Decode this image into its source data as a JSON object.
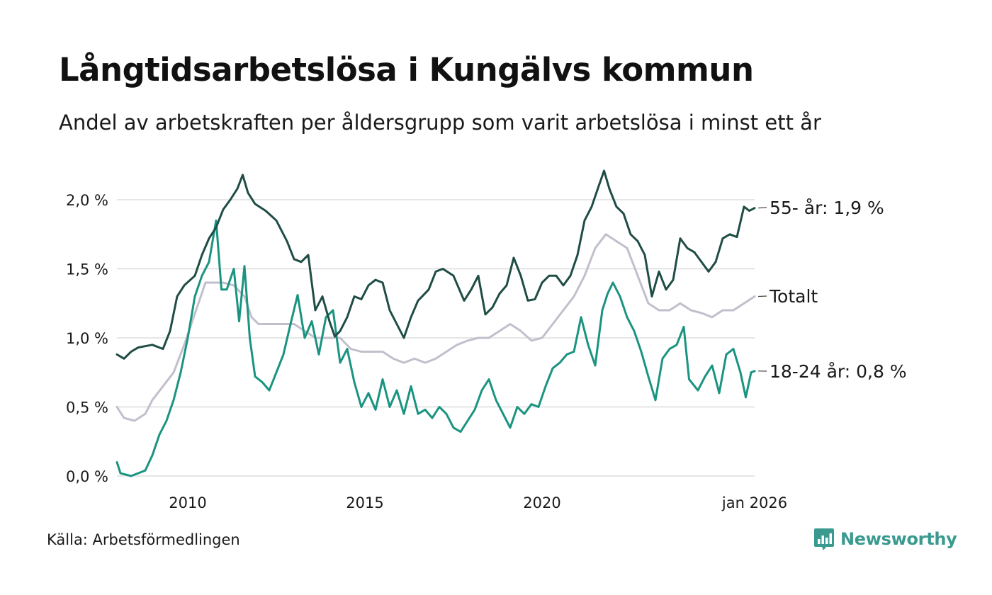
{
  "header": {
    "title": "Långtidsarbetslösa i Kungälvs kommun",
    "subtitle": "Andel av arbetskraften per åldersgrupp som varit arbetslösa i minst ett år"
  },
  "footer": {
    "source": "Källa: Arbetsförmedlingen",
    "brand": "Newsworthy"
  },
  "colors": {
    "series_55": "#1f4d45",
    "series_total": "#c2bfcc",
    "series_18_24": "#1a9480",
    "grid": "#dddddd",
    "brand": "#3a9a8f"
  },
  "chart_data": {
    "type": "line",
    "title": "Långtidsarbetslösa i Kungälvs kommun",
    "subtitle": "Andel av arbetskraften per åldersgrupp som varit arbetslösa i minst ett år",
    "xlabel": "",
    "ylabel": "",
    "xlim": [
      2008.0,
      2026.0
    ],
    "ylim": [
      0,
      2.2
    ],
    "y_ticks": [
      0,
      0.5,
      1.0,
      1.5,
      2.0
    ],
    "y_tick_labels": [
      "0,0 %",
      "0,5 %",
      "1,0 %",
      "1,5 %",
      "2,0 %"
    ],
    "x_ticks": [
      2010,
      2015,
      2020,
      2026.0
    ],
    "x_tick_labels": [
      "2010",
      "2015",
      "2020",
      "jan 2026"
    ],
    "grid": true,
    "series": [
      {
        "name": "55- år",
        "label": "55- år: 1,9 %",
        "color_key": "series_55",
        "points": [
          [
            2008.0,
            0.88
          ],
          [
            2008.2,
            0.85
          ],
          [
            2008.4,
            0.9
          ],
          [
            2008.6,
            0.93
          ],
          [
            2008.8,
            0.94
          ],
          [
            2009.0,
            0.95
          ],
          [
            2009.3,
            0.92
          ],
          [
            2009.5,
            1.05
          ],
          [
            2009.7,
            1.3
          ],
          [
            2009.9,
            1.38
          ],
          [
            2010.2,
            1.45
          ],
          [
            2010.4,
            1.6
          ],
          [
            2010.6,
            1.72
          ],
          [
            2010.8,
            1.8
          ],
          [
            2011.0,
            1.93
          ],
          [
            2011.2,
            2.0
          ],
          [
            2011.4,
            2.08
          ],
          [
            2011.55,
            2.18
          ],
          [
            2011.7,
            2.05
          ],
          [
            2011.9,
            1.97
          ],
          [
            2012.2,
            1.92
          ],
          [
            2012.5,
            1.85
          ],
          [
            2012.8,
            1.7
          ],
          [
            2013.0,
            1.57
          ],
          [
            2013.2,
            1.55
          ],
          [
            2013.4,
            1.6
          ],
          [
            2013.6,
            1.2
          ],
          [
            2013.8,
            1.3
          ],
          [
            2014.0,
            1.12
          ],
          [
            2014.15,
            1.01
          ],
          [
            2014.3,
            1.05
          ],
          [
            2014.5,
            1.15
          ],
          [
            2014.7,
            1.3
          ],
          [
            2014.9,
            1.28
          ],
          [
            2015.1,
            1.38
          ],
          [
            2015.3,
            1.42
          ],
          [
            2015.5,
            1.4
          ],
          [
            2015.7,
            1.2
          ],
          [
            2015.9,
            1.1
          ],
          [
            2016.1,
            1.0
          ],
          [
            2016.3,
            1.15
          ],
          [
            2016.5,
            1.27
          ],
          [
            2016.8,
            1.35
          ],
          [
            2017.0,
            1.48
          ],
          [
            2017.2,
            1.5
          ],
          [
            2017.5,
            1.45
          ],
          [
            2017.8,
            1.27
          ],
          [
            2018.0,
            1.35
          ],
          [
            2018.2,
            1.45
          ],
          [
            2018.4,
            1.17
          ],
          [
            2018.6,
            1.22
          ],
          [
            2018.8,
            1.32
          ],
          [
            2019.0,
            1.38
          ],
          [
            2019.2,
            1.58
          ],
          [
            2019.4,
            1.45
          ],
          [
            2019.6,
            1.27
          ],
          [
            2019.8,
            1.28
          ],
          [
            2020.0,
            1.4
          ],
          [
            2020.2,
            1.45
          ],
          [
            2020.4,
            1.45
          ],
          [
            2020.6,
            1.38
          ],
          [
            2020.8,
            1.45
          ],
          [
            2021.0,
            1.6
          ],
          [
            2021.2,
            1.85
          ],
          [
            2021.4,
            1.95
          ],
          [
            2021.6,
            2.1
          ],
          [
            2021.75,
            2.21
          ],
          [
            2021.9,
            2.08
          ],
          [
            2022.1,
            1.95
          ],
          [
            2022.3,
            1.9
          ],
          [
            2022.5,
            1.75
          ],
          [
            2022.7,
            1.7
          ],
          [
            2022.9,
            1.6
          ],
          [
            2023.1,
            1.3
          ],
          [
            2023.3,
            1.48
          ],
          [
            2023.5,
            1.35
          ],
          [
            2023.7,
            1.42
          ],
          [
            2023.9,
            1.72
          ],
          [
            2024.1,
            1.65
          ],
          [
            2024.3,
            1.62
          ],
          [
            2024.5,
            1.55
          ],
          [
            2024.7,
            1.48
          ],
          [
            2024.9,
            1.55
          ],
          [
            2025.1,
            1.72
          ],
          [
            2025.3,
            1.75
          ],
          [
            2025.5,
            1.73
          ],
          [
            2025.7,
            1.95
          ],
          [
            2025.85,
            1.92
          ],
          [
            2026.0,
            1.94
          ]
        ]
      },
      {
        "name": "Totalt",
        "label": "Totalt",
        "color_key": "series_total",
        "points": [
          [
            2008.0,
            0.5
          ],
          [
            2008.2,
            0.42
          ],
          [
            2008.5,
            0.4
          ],
          [
            2008.8,
            0.45
          ],
          [
            2009.0,
            0.55
          ],
          [
            2009.3,
            0.65
          ],
          [
            2009.6,
            0.75
          ],
          [
            2009.9,
            0.95
          ],
          [
            2010.1,
            1.1
          ],
          [
            2010.3,
            1.25
          ],
          [
            2010.5,
            1.4
          ],
          [
            2010.8,
            1.4
          ],
          [
            2011.0,
            1.4
          ],
          [
            2011.3,
            1.38
          ],
          [
            2011.6,
            1.3
          ],
          [
            2011.8,
            1.15
          ],
          [
            2012.0,
            1.1
          ],
          [
            2012.3,
            1.1
          ],
          [
            2012.6,
            1.1
          ],
          [
            2013.0,
            1.1
          ],
          [
            2013.3,
            1.05
          ],
          [
            2013.6,
            1.0
          ],
          [
            2014.0,
            1.0
          ],
          [
            2014.3,
            1.0
          ],
          [
            2014.6,
            0.92
          ],
          [
            2014.9,
            0.9
          ],
          [
            2015.2,
            0.9
          ],
          [
            2015.5,
            0.9
          ],
          [
            2015.8,
            0.85
          ],
          [
            2016.1,
            0.82
          ],
          [
            2016.4,
            0.85
          ],
          [
            2016.7,
            0.82
          ],
          [
            2017.0,
            0.85
          ],
          [
            2017.3,
            0.9
          ],
          [
            2017.6,
            0.95
          ],
          [
            2017.9,
            0.98
          ],
          [
            2018.2,
            1.0
          ],
          [
            2018.5,
            1.0
          ],
          [
            2018.8,
            1.05
          ],
          [
            2019.1,
            1.1
          ],
          [
            2019.4,
            1.05
          ],
          [
            2019.7,
            0.98
          ],
          [
            2020.0,
            1.0
          ],
          [
            2020.3,
            1.1
          ],
          [
            2020.6,
            1.2
          ],
          [
            2020.9,
            1.3
          ],
          [
            2021.2,
            1.45
          ],
          [
            2021.5,
            1.65
          ],
          [
            2021.8,
            1.75
          ],
          [
            2022.1,
            1.7
          ],
          [
            2022.4,
            1.65
          ],
          [
            2022.7,
            1.45
          ],
          [
            2023.0,
            1.25
          ],
          [
            2023.3,
            1.2
          ],
          [
            2023.6,
            1.2
          ],
          [
            2023.9,
            1.25
          ],
          [
            2024.2,
            1.2
          ],
          [
            2024.5,
            1.18
          ],
          [
            2024.8,
            1.15
          ],
          [
            2025.1,
            1.2
          ],
          [
            2025.4,
            1.2
          ],
          [
            2025.7,
            1.25
          ],
          [
            2026.0,
            1.3
          ]
        ]
      },
      {
        "name": "18-24 år",
        "label": "18-24 år: 0,8 %",
        "color_key": "series_18_24",
        "points": [
          [
            2008.0,
            0.1
          ],
          [
            2008.1,
            0.02
          ],
          [
            2008.4,
            0.0
          ],
          [
            2008.6,
            0.02
          ],
          [
            2008.8,
            0.04
          ],
          [
            2009.0,
            0.15
          ],
          [
            2009.2,
            0.3
          ],
          [
            2009.4,
            0.4
          ],
          [
            2009.6,
            0.55
          ],
          [
            2009.8,
            0.75
          ],
          [
            2010.0,
            1.0
          ],
          [
            2010.2,
            1.3
          ],
          [
            2010.4,
            1.45
          ],
          [
            2010.6,
            1.55
          ],
          [
            2010.8,
            1.85
          ],
          [
            2010.95,
            1.35
          ],
          [
            2011.1,
            1.35
          ],
          [
            2011.3,
            1.5
          ],
          [
            2011.45,
            1.12
          ],
          [
            2011.6,
            1.52
          ],
          [
            2011.75,
            1.0
          ],
          [
            2011.9,
            0.72
          ],
          [
            2012.1,
            0.68
          ],
          [
            2012.3,
            0.62
          ],
          [
            2012.5,
            0.75
          ],
          [
            2012.7,
            0.88
          ],
          [
            2012.9,
            1.1
          ],
          [
            2013.1,
            1.31
          ],
          [
            2013.3,
            1.0
          ],
          [
            2013.5,
            1.12
          ],
          [
            2013.7,
            0.88
          ],
          [
            2013.9,
            1.15
          ],
          [
            2014.1,
            1.2
          ],
          [
            2014.3,
            0.82
          ],
          [
            2014.5,
            0.92
          ],
          [
            2014.7,
            0.68
          ],
          [
            2014.9,
            0.5
          ],
          [
            2015.1,
            0.6
          ],
          [
            2015.3,
            0.48
          ],
          [
            2015.5,
            0.7
          ],
          [
            2015.7,
            0.5
          ],
          [
            2015.9,
            0.62
          ],
          [
            2016.1,
            0.45
          ],
          [
            2016.3,
            0.65
          ],
          [
            2016.5,
            0.45
          ],
          [
            2016.7,
            0.48
          ],
          [
            2016.9,
            0.42
          ],
          [
            2017.1,
            0.5
          ],
          [
            2017.3,
            0.45
          ],
          [
            2017.5,
            0.35
          ],
          [
            2017.7,
            0.32
          ],
          [
            2017.9,
            0.4
          ],
          [
            2018.1,
            0.48
          ],
          [
            2018.3,
            0.62
          ],
          [
            2018.5,
            0.7
          ],
          [
            2018.7,
            0.55
          ],
          [
            2018.9,
            0.45
          ],
          [
            2019.1,
            0.35
          ],
          [
            2019.3,
            0.5
          ],
          [
            2019.5,
            0.45
          ],
          [
            2019.7,
            0.52
          ],
          [
            2019.9,
            0.5
          ],
          [
            2020.1,
            0.65
          ],
          [
            2020.3,
            0.78
          ],
          [
            2020.5,
            0.82
          ],
          [
            2020.7,
            0.88
          ],
          [
            2020.9,
            0.9
          ],
          [
            2021.1,
            1.15
          ],
          [
            2021.3,
            0.95
          ],
          [
            2021.5,
            0.8
          ],
          [
            2021.7,
            1.2
          ],
          [
            2021.85,
            1.32
          ],
          [
            2022.0,
            1.4
          ],
          [
            2022.2,
            1.3
          ],
          [
            2022.4,
            1.15
          ],
          [
            2022.6,
            1.05
          ],
          [
            2022.8,
            0.9
          ],
          [
            2023.0,
            0.72
          ],
          [
            2023.2,
            0.55
          ],
          [
            2023.4,
            0.85
          ],
          [
            2023.6,
            0.92
          ],
          [
            2023.8,
            0.95
          ],
          [
            2024.0,
            1.08
          ],
          [
            2024.15,
            0.7
          ],
          [
            2024.4,
            0.62
          ],
          [
            2024.6,
            0.72
          ],
          [
            2024.8,
            0.8
          ],
          [
            2025.0,
            0.6
          ],
          [
            2025.2,
            0.88
          ],
          [
            2025.4,
            0.92
          ],
          [
            2025.6,
            0.75
          ],
          [
            2025.75,
            0.57
          ],
          [
            2025.9,
            0.75
          ],
          [
            2026.0,
            0.76
          ]
        ]
      }
    ]
  }
}
